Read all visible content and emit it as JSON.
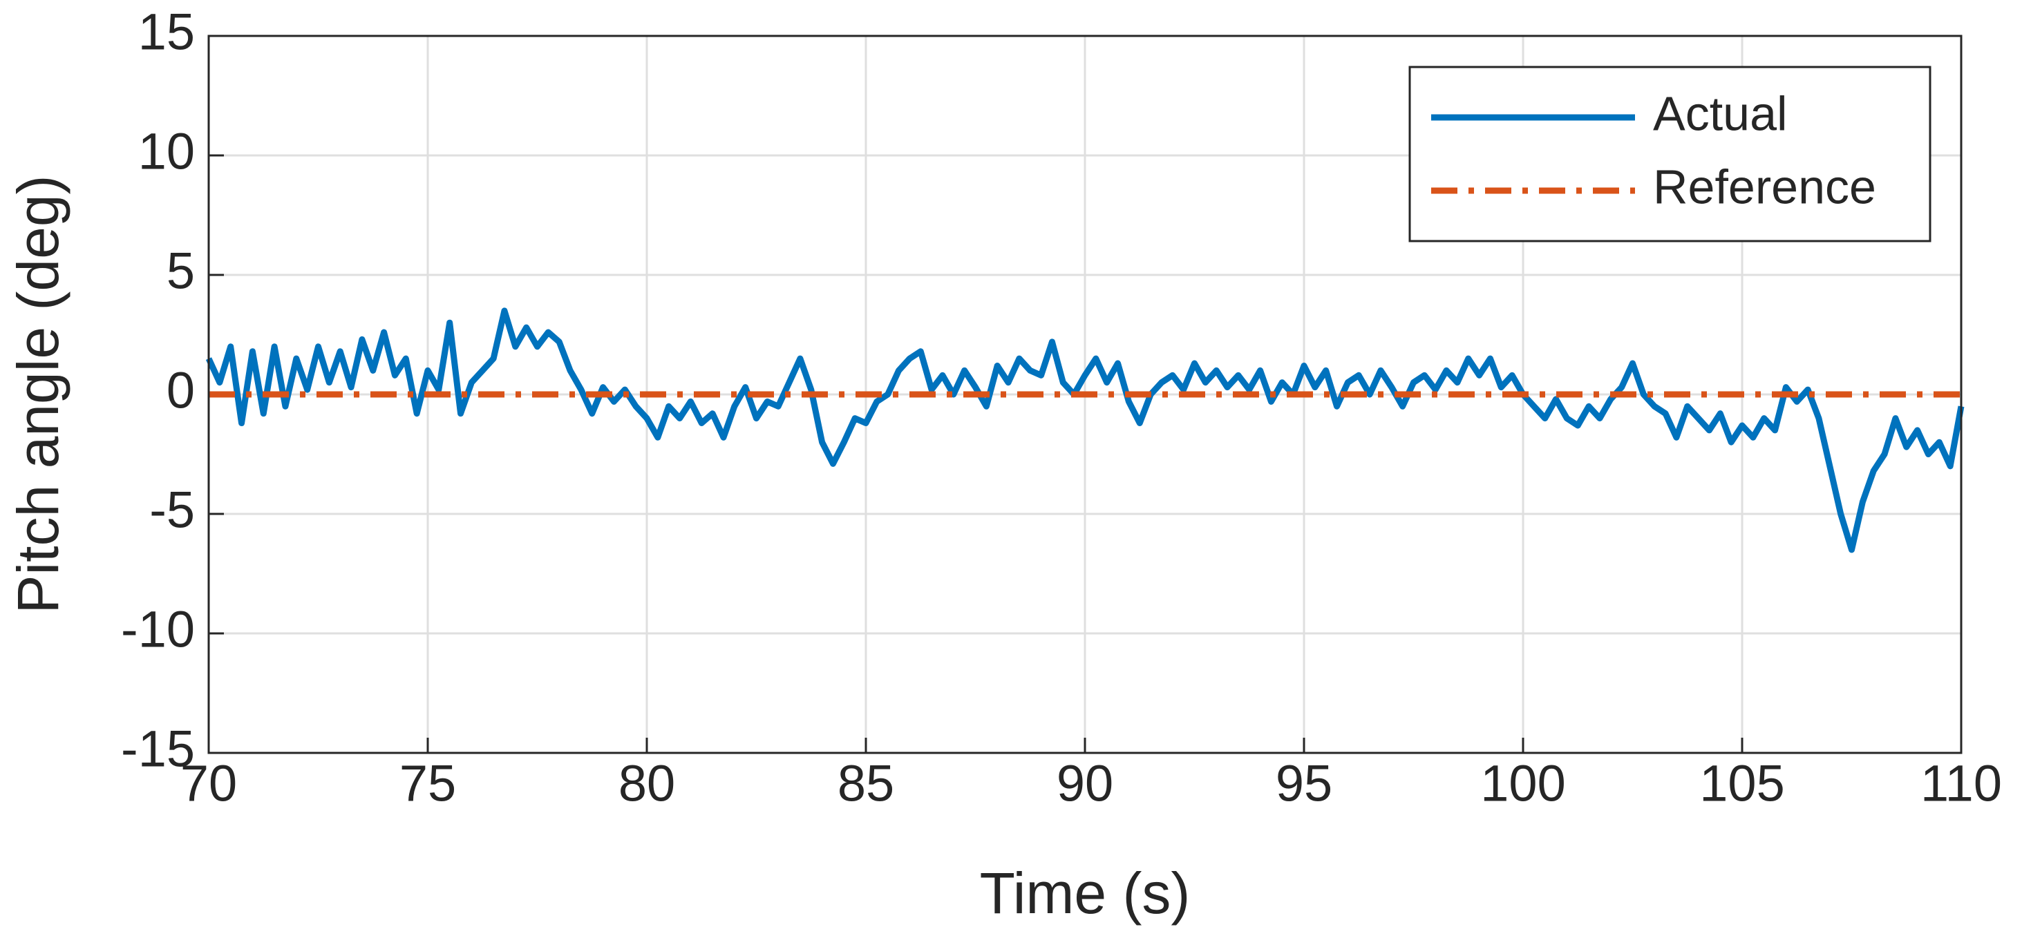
{
  "chart_data": {
    "type": "line",
    "xlabel": "Time (s)",
    "ylabel": "Pitch angle (deg)",
    "xlim": [
      70,
      110
    ],
    "xticks": [
      70,
      75,
      80,
      85,
      90,
      95,
      100,
      105,
      110
    ],
    "ylim": [
      -15,
      15
    ],
    "yticks": [
      -15,
      -10,
      -5,
      0,
      5,
      10,
      15
    ],
    "grid": true,
    "legend": "northeast",
    "series": [
      {
        "name": "Actual",
        "color": "#0072BD",
        "style": "solid",
        "x": [
          70,
          70.25,
          70.5,
          70.75,
          71,
          71.25,
          71.5,
          71.75,
          72,
          72.25,
          72.5,
          72.75,
          73,
          73.25,
          73.5,
          73.75,
          74,
          74.25,
          74.5,
          74.75,
          75,
          75.25,
          75.5,
          75.75,
          76,
          76.25,
          76.5,
          76.75,
          77,
          77.25,
          77.5,
          77.75,
          78,
          78.25,
          78.5,
          78.75,
          79,
          79.25,
          79.5,
          79.75,
          80,
          80.25,
          80.5,
          80.75,
          81,
          81.25,
          81.5,
          81.75,
          82,
          82.25,
          82.5,
          82.75,
          83,
          83.25,
          83.5,
          83.75,
          84,
          84.25,
          84.5,
          84.75,
          85,
          85.25,
          85.5,
          85.75,
          86,
          86.25,
          86.5,
          86.75,
          87,
          87.25,
          87.5,
          87.75,
          88,
          88.25,
          88.5,
          88.75,
          89,
          89.25,
          89.5,
          89.75,
          90,
          90.25,
          90.5,
          90.75,
          91,
          91.25,
          91.5,
          91.75,
          92,
          92.25,
          92.5,
          92.75,
          93,
          93.25,
          93.5,
          93.75,
          94,
          94.25,
          94.5,
          94.75,
          95,
          95.25,
          95.5,
          95.75,
          96,
          96.25,
          96.5,
          96.75,
          97,
          97.25,
          97.5,
          97.75,
          98,
          98.25,
          98.5,
          98.75,
          99,
          99.25,
          99.5,
          99.75,
          100,
          100.25,
          100.5,
          100.75,
          101,
          101.25,
          101.5,
          101.75,
          102,
          102.25,
          102.5,
          102.75,
          103,
          103.25,
          103.5,
          103.75,
          104,
          104.25,
          104.5,
          104.75,
          105,
          105.25,
          105.5,
          105.75,
          106,
          106.25,
          106.5,
          106.75,
          107,
          107.25,
          107.5,
          107.75,
          108,
          108.25,
          108.5,
          108.75,
          109,
          109.25,
          109.5,
          109.75,
          110
        ],
        "values": [
          1.5,
          0.5,
          2.0,
          -1.2,
          1.8,
          -0.8,
          2.0,
          -0.5,
          1.5,
          0.2,
          2.0,
          0.5,
          1.8,
          0.3,
          2.3,
          1.0,
          2.6,
          0.8,
          1.5,
          -0.8,
          1.0,
          0.2,
          3.0,
          -0.8,
          0.5,
          1.0,
          1.5,
          3.5,
          2.0,
          2.8,
          2.0,
          2.6,
          2.2,
          1.0,
          0.2,
          -0.8,
          0.3,
          -0.3,
          0.2,
          -0.5,
          -1.0,
          -1.8,
          -0.5,
          -1.0,
          -0.3,
          -1.2,
          -0.8,
          -1.8,
          -0.5,
          0.3,
          -1.0,
          -0.3,
          -0.5,
          0.5,
          1.5,
          0.2,
          -2.0,
          -2.9,
          -2.0,
          -1.0,
          -1.2,
          -0.3,
          0.0,
          1.0,
          1.5,
          1.8,
          0.2,
          0.8,
          0.0,
          1.0,
          0.3,
          -0.5,
          1.2,
          0.5,
          1.5,
          1.0,
          0.8,
          2.2,
          0.5,
          0.0,
          0.8,
          1.5,
          0.5,
          1.3,
          -0.3,
          -1.2,
          0.0,
          0.5,
          0.8,
          0.2,
          1.3,
          0.5,
          1.0,
          0.3,
          0.8,
          0.2,
          1.0,
          -0.3,
          0.5,
          0.0,
          1.2,
          0.3,
          1.0,
          -0.5,
          0.5,
          0.8,
          0.0,
          1.0,
          0.3,
          -0.5,
          0.5,
          0.8,
          0.2,
          1.0,
          0.5,
          1.5,
          0.8,
          1.5,
          0.3,
          0.8,
          0.0,
          -0.5,
          -1.0,
          -0.2,
          -1.0,
          -1.3,
          -0.5,
          -1.0,
          -0.2,
          0.3,
          1.3,
          0.0,
          -0.5,
          -0.8,
          -1.8,
          -0.5,
          -1.0,
          -1.5,
          -0.8,
          -2.0,
          -1.3,
          -1.8,
          -1.0,
          -1.5,
          0.3,
          -0.3,
          0.2,
          -1.0,
          -3.0,
          -5.0,
          -6.5,
          -4.5,
          -3.2,
          -2.5,
          -1.0,
          -2.2,
          -1.5,
          -2.5,
          -2.0,
          -3.0,
          -0.5
        ]
      },
      {
        "name": "Reference",
        "color": "#D95319",
        "style": "dashdot",
        "x": [
          70,
          110
        ],
        "values": [
          0,
          0
        ]
      }
    ]
  }
}
